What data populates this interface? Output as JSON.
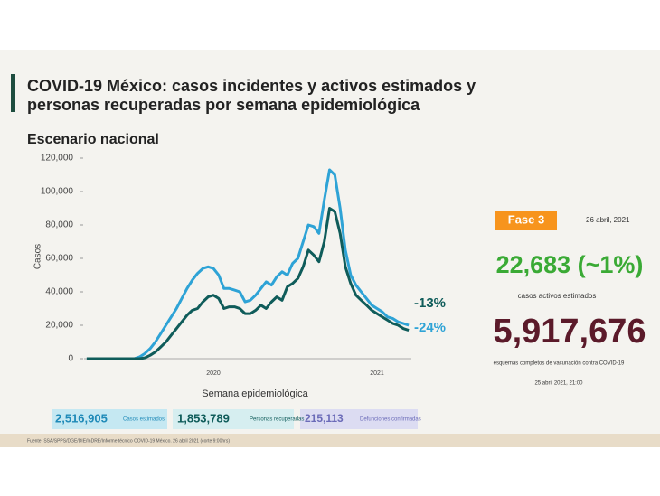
{
  "header": {
    "title_lines": [
      "COVID-19 México: casos incidentes y activos estimados y",
      "personas recuperadas por semana epidemiológica"
    ],
    "subtitle": "Escenario nacional"
  },
  "chart_data": {
    "type": "line",
    "y_label": "Casos",
    "x_label": "Semana epidemiológica",
    "categories": [
      null,
      null,
      null,
      null,
      null,
      null,
      null,
      null,
      null,
      null,
      null,
      null,
      null,
      null,
      null,
      null,
      null,
      null,
      null,
      null,
      null,
      null,
      null,
      null,
      "2020",
      null,
      null,
      null,
      null,
      null,
      null,
      null,
      null,
      null,
      null,
      null,
      null,
      null,
      null,
      null,
      null,
      null,
      null,
      null,
      null,
      null,
      null,
      null,
      null,
      null,
      null,
      null,
      null,
      null,
      null,
      "2021",
      null,
      null,
      null,
      null,
      null,
      null
    ],
    "series": [
      {
        "color": "#2ea3d6",
        "values": [
          0,
          0,
          0,
          0,
          0,
          0,
          0,
          0,
          0,
          0,
          1000,
          3000,
          6000,
          10000,
          15000,
          20000,
          25000,
          30000,
          36000,
          42000,
          47000,
          51000,
          54000,
          55000,
          54000,
          50000,
          42000,
          42000,
          41000,
          40000,
          34000,
          35000,
          38000,
          42000,
          46000,
          44000,
          49000,
          52000,
          50000,
          57000,
          60000,
          70000,
          80000,
          79000,
          75000,
          95000,
          113000,
          110000,
          90000,
          65000,
          50000,
          44000,
          40000,
          36000,
          32000,
          30000,
          28000,
          25000,
          24000,
          22000,
          21000,
          20000
        ]
      },
      {
        "color": "#0f5c5a",
        "values": [
          0,
          0,
          0,
          0,
          0,
          0,
          0,
          0,
          0,
          0,
          0,
          500,
          2000,
          4000,
          7000,
          10000,
          14000,
          18000,
          22000,
          26000,
          29000,
          30000,
          34000,
          37000,
          38000,
          36000,
          30000,
          31000,
          31000,
          30000,
          27000,
          27000,
          29000,
          32000,
          30000,
          34000,
          37000,
          35000,
          43000,
          45000,
          48000,
          55000,
          65000,
          62000,
          58000,
          70000,
          90000,
          88000,
          75000,
          55000,
          45000,
          38000,
          35000,
          32000,
          29000,
          27000,
          25000,
          23000,
          21000,
          20000,
          18000,
          17000
        ]
      }
    ],
    "ylim": [
      0,
      120000
    ],
    "yticks": [
      0,
      {
        "value": 20000,
        "label": "20,000"
      },
      {
        "value": 40000,
        "label": "40,000"
      },
      {
        "value": 60000,
        "label": "60,000"
      },
      {
        "value": 80000,
        "label": "80,000"
      },
      {
        "value": 100000,
        "label": "100,000"
      },
      {
        "value": 120000,
        "label": "120,000"
      }
    ],
    "grid": false,
    "annotations": [
      {
        "text": "-13%",
        "color": "#0f5c5a"
      },
      {
        "text": "-24%",
        "color": "#2ea3d6"
      }
    ]
  },
  "side": {
    "phase": "Fase 3",
    "date": "26 abril, 2021",
    "active": "22,683 (~1%)",
    "active_label": "casos activos estimados",
    "vaccinated": "5,917,676",
    "vaccinated_label": "esquemas completos de vacunación contra COVID-19",
    "vaccinated_date": "25 abril 2021, 21:00"
  },
  "boxes": [
    {
      "value": "2,516,905",
      "label": "Casos estimados"
    },
    {
      "value": "1,853,789",
      "label": "Personas recuperadas"
    },
    {
      "value": "215,113",
      "label": "Defunciones confirmadas"
    }
  ],
  "footer": "Fuente: SSA/SPPS/DGE/DIE/InDRE/Informe técnico COVID-19 México. 26 abril 2021 (corte 9:00hrs)"
}
